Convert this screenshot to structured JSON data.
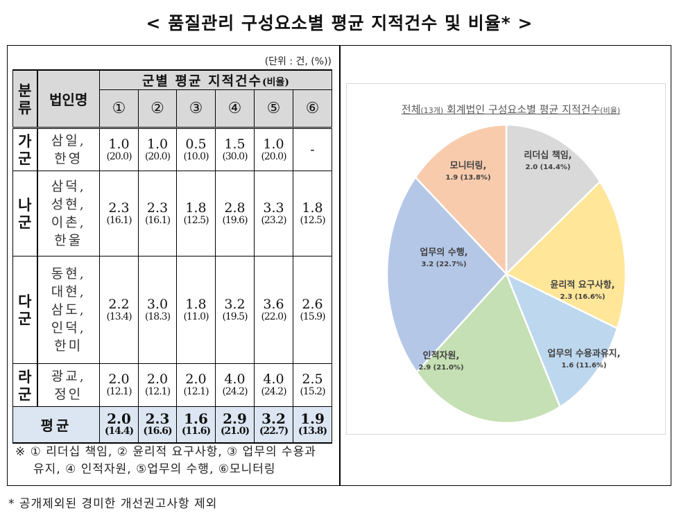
{
  "title": "< 품질관리 구성요소별 평균 지적건수 및 비율* >",
  "table": {
    "unit": "(단위 : 건, (%))",
    "header": {
      "group_col": [
        "분",
        "류"
      ],
      "corp_col": "법인명",
      "span_title": "군별 평균 지적건수",
      "span_title_suffix": "(비율)",
      "columns": [
        "①",
        "②",
        "③",
        "④",
        "⑤",
        "⑥"
      ]
    },
    "rows": [
      {
        "group": [
          "가",
          "군"
        ],
        "corps": [
          "삼일,",
          "한영"
        ],
        "values": [
          "1.0",
          "1.0",
          "0.5",
          "1.5",
          "1.0",
          "-"
        ],
        "percents": [
          "(20.0)",
          "(20.0)",
          "(10.0)",
          "(30.0)",
          "(20.0)",
          ""
        ]
      },
      {
        "group": [
          "나",
          "군"
        ],
        "corps": [
          "삼덕,",
          "성현,",
          "이촌,",
          "한울"
        ],
        "values": [
          "2.3",
          "2.3",
          "1.8",
          "2.8",
          "3.3",
          "1.8"
        ],
        "percents": [
          "(16.1)",
          "(16.1)",
          "(12.5)",
          "(19.6)",
          "(23.2)",
          "(12.5)"
        ]
      },
      {
        "group": [
          "다",
          "군"
        ],
        "corps": [
          "동현,",
          "대현,",
          "삼도,",
          "인덕,",
          "한미"
        ],
        "values": [
          "2.2",
          "3.0",
          "1.8",
          "3.2",
          "3.6",
          "2.6"
        ],
        "percents": [
          "(13.4)",
          "(18.3)",
          "(11.0)",
          "(19.5)",
          "(22.0)",
          "(15.9)"
        ]
      },
      {
        "group": [
          "라",
          "군"
        ],
        "corps": [
          "광교,",
          "정인"
        ],
        "values": [
          "2.0",
          "2.0",
          "2.0",
          "4.0",
          "4.0",
          "2.5"
        ],
        "percents": [
          "(12.1)",
          "(12.1)",
          "(12.1)",
          "(24.2)",
          "(24.2)",
          "(15.2)"
        ]
      }
    ],
    "average": {
      "label": "평균",
      "values": [
        "2.0",
        "2.3",
        "1.6",
        "2.9",
        "3.2",
        "1.9"
      ],
      "percents": [
        "(14.4)",
        "(16.6)",
        "(11.6)",
        "(21.0)",
        "(22.7)",
        "(13.8)"
      ]
    },
    "note_line1": "※ ① 리더십 책임, ② 윤리적 요구사항, ③ 업무의 수용과",
    "note_line2": "유지, ④ 인적자원, ⑤업무의 수행, ⑥모니터링"
  },
  "footnote": "* 공개제외된 경미한 개선권고사항 제외",
  "chart": {
    "title_pre": "전체",
    "title_small": "(13개)",
    "title_mid": " 회계법인 구성요소별 평균 지적건수",
    "title_suffix": "(비율)",
    "labels": [
      {
        "name": "리더십 책임,",
        "value": "2.0 (14.4%)"
      },
      {
        "name": "윤리적 요구사항,",
        "value": "2.3 (16.6%)"
      },
      {
        "name": "업무의 수용과유지,",
        "value": "1.6 (11.6%)"
      },
      {
        "name": "인적자원,",
        "value": "2.9 (21.0%)"
      },
      {
        "name": "업무의 수행,",
        "value": "3.2 (22.7%)"
      },
      {
        "name": "모니터링,",
        "value": "1.9 (13.8%)"
      }
    ]
  },
  "chart_data": {
    "type": "pie",
    "title": "전체(13개) 회계법인 구성요소별 평균 지적건수(비율)",
    "categories": [
      "리더십 책임",
      "윤리적 요구사항",
      "업무의 수용과유지",
      "인적자원",
      "업무의 수행",
      "모니터링"
    ],
    "values": [
      2.0,
      2.3,
      1.6,
      2.9,
      3.2,
      1.9
    ],
    "percents": [
      14.4,
      16.6,
      11.6,
      21.0,
      22.7,
      13.8
    ],
    "colors": [
      "#d9d9d9",
      "#ffe699",
      "#bdd7ee",
      "#c5e0b4",
      "#b4c7e7",
      "#f8cbad"
    ],
    "start_angle_deg": 0,
    "direction": "clockwise",
    "legend": "none (data labels on slices)"
  }
}
